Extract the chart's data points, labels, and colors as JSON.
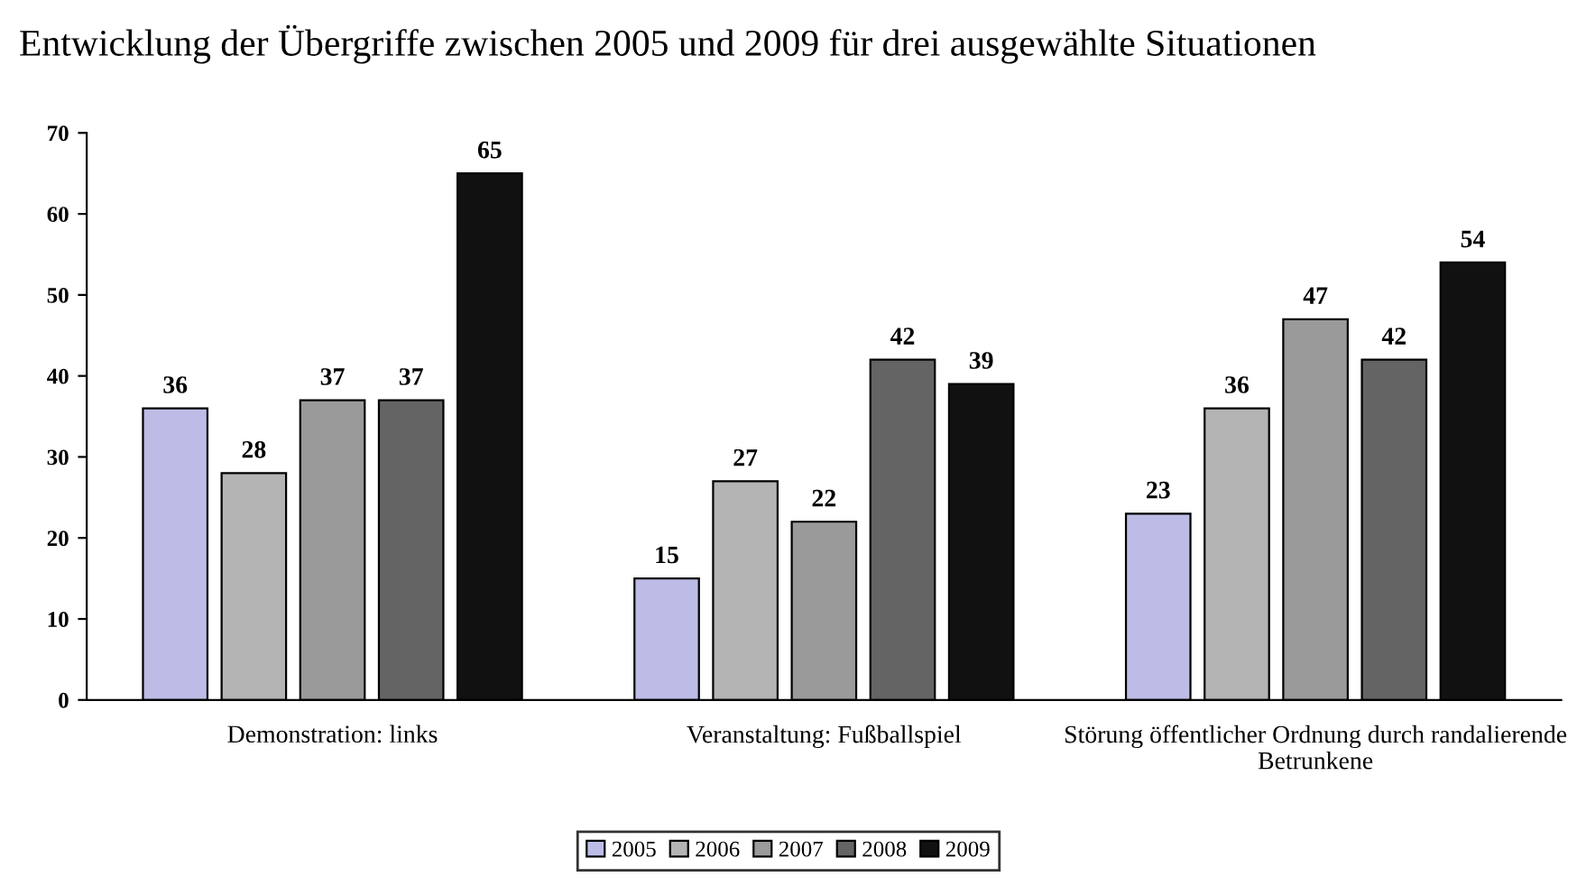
{
  "chart_data": {
    "type": "bar",
    "title": "Entwicklung der Übergriffe zwischen 2005 und 2009 für drei ausgewählte Situationen",
    "categories": [
      "Demonstration: links",
      "Veranstaltung: Fußballspiel",
      "Störung öffentlicher Ordnung durch randalierende Betrunkene"
    ],
    "series": [
      {
        "name": "2005",
        "color": "#bcbce6",
        "values": [
          36,
          15,
          23
        ]
      },
      {
        "name": "2006",
        "color": "#b4b4b4",
        "values": [
          28,
          27,
          36
        ]
      },
      {
        "name": "2007",
        "color": "#9a9a9a",
        "values": [
          37,
          22,
          47
        ]
      },
      {
        "name": "2008",
        "color": "#646464",
        "values": [
          37,
          42,
          42
        ]
      },
      {
        "name": "2009",
        "color": "#111111",
        "values": [
          65,
          39,
          54
        ]
      }
    ],
    "ylim": [
      0,
      70
    ],
    "yticks": [
      0,
      10,
      20,
      30,
      40,
      50,
      60,
      70
    ],
    "grid": false,
    "legend": "bottom",
    "data_labels": true
  }
}
